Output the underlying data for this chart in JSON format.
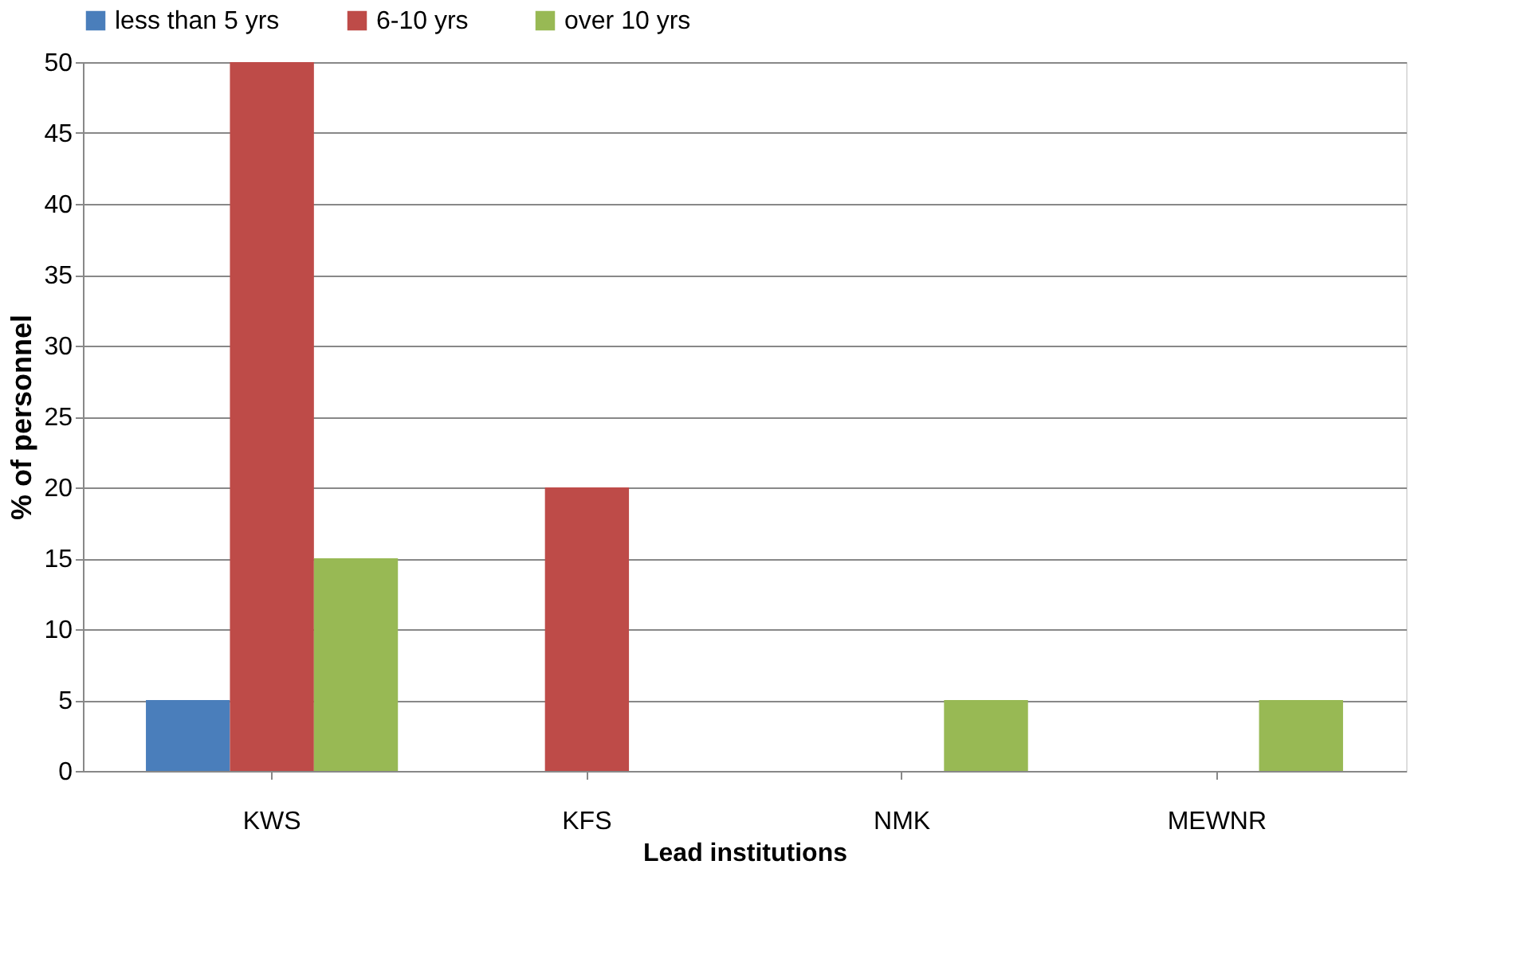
{
  "chart_data": {
    "type": "bar",
    "xlabel": "Lead institutions",
    "ylabel": "% of personnel",
    "categories": [
      "KWS",
      "KFS",
      "NMK",
      "MEWNR"
    ],
    "series": [
      {
        "name": "less than 5 yrs",
        "color": "#4a7ebb",
        "values": [
          5,
          0,
          0,
          0
        ]
      },
      {
        "name": "6-10 yrs",
        "color": "#be4b48",
        "values": [
          50,
          20,
          0,
          0
        ]
      },
      {
        "name": "over 10 yrs",
        "color": "#98b954",
        "values": [
          15,
          0,
          5,
          5
        ]
      }
    ],
    "ylim": [
      0,
      50
    ],
    "yticks": [
      0,
      5,
      10,
      15,
      20,
      25,
      30,
      35,
      40,
      45,
      50
    ],
    "grid": "y",
    "legend": "top"
  }
}
